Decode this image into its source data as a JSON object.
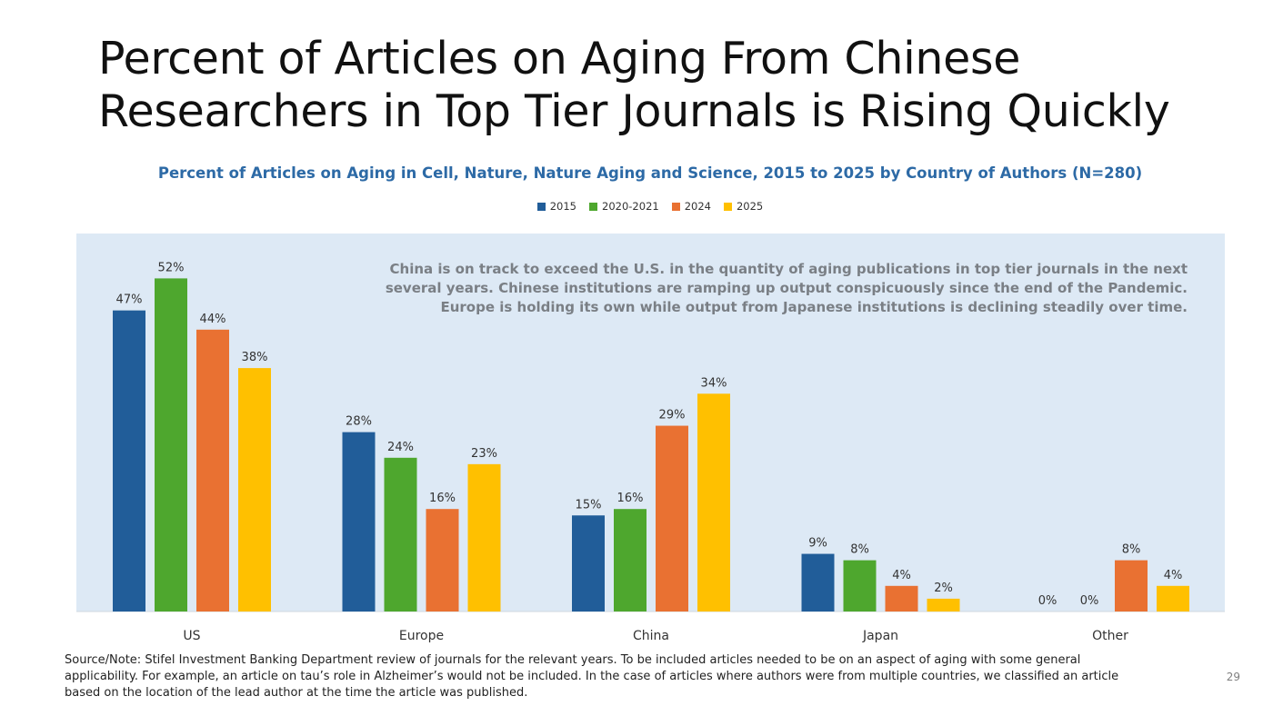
{
  "title": "Percent of Articles on Aging From Chinese Researchers in Top Tier Journals is Rising Quickly",
  "subtitle": "Percent of Articles on Aging in Cell, Nature, Nature Aging and Science, 2015 to 2025 by Country of Authors (N=280)",
  "annotation": "China is on track to exceed the U.S. in the quantity of aging publications in top tier journals in the next several years. Chinese institutions are ramping up output conspicuously since the end of the Pandemic. Europe is holding its own while output from Japanese institutions is declining steadily over time.",
  "footnote": "Source/Note: Stifel Investment Banking Department review of journals for the relevant years. To be included articles needed to be on an aspect of aging with some general applicability. For example, an article on tau’s role in Alzheimer’s would not be included. In the case of articles where authors were from multiple countries, we classified an article based on the location of the lead author at the time the article was published.",
  "page_number": "29",
  "legend": [
    {
      "label": "2015",
      "color": "#215d99"
    },
    {
      "label": "2020-2021",
      "color": "#4ea72e"
    },
    {
      "label": "2024",
      "color": "#e97132"
    },
    {
      "label": "2025",
      "color": "#ffc000"
    }
  ],
  "chart_data": {
    "type": "bar",
    "title": "Percent of Articles on Aging in Cell, Nature, Nature Aging and Science, 2015 to 2025 by Country of Authors (N=280)",
    "categories": [
      "US",
      "Europe",
      "China",
      "Japan",
      "Other"
    ],
    "series": [
      {
        "name": "2015",
        "color": "#215d99",
        "values": [
          47,
          28,
          15,
          9,
          0
        ],
        "labels": [
          "47%",
          "28%",
          "15%",
          "9%",
          "0%"
        ]
      },
      {
        "name": "2020-2021",
        "color": "#4ea72e",
        "values": [
          52,
          24,
          16,
          8,
          0
        ],
        "labels": [
          "52%",
          "24%",
          "16%",
          "8%",
          "0%"
        ]
      },
      {
        "name": "2024",
        "color": "#e97132",
        "values": [
          44,
          16,
          29,
          4,
          8
        ],
        "labels": [
          "44%",
          "16%",
          "29%",
          "4%",
          "8%"
        ]
      },
      {
        "name": "2025",
        "color": "#ffc000",
        "values": [
          38,
          23,
          34,
          2,
          4
        ],
        "labels": [
          "38%",
          "23%",
          "34%",
          "2%",
          "4%"
        ]
      }
    ],
    "ylim": [
      0,
      60
    ],
    "grid": false,
    "legend_position": "top"
  }
}
